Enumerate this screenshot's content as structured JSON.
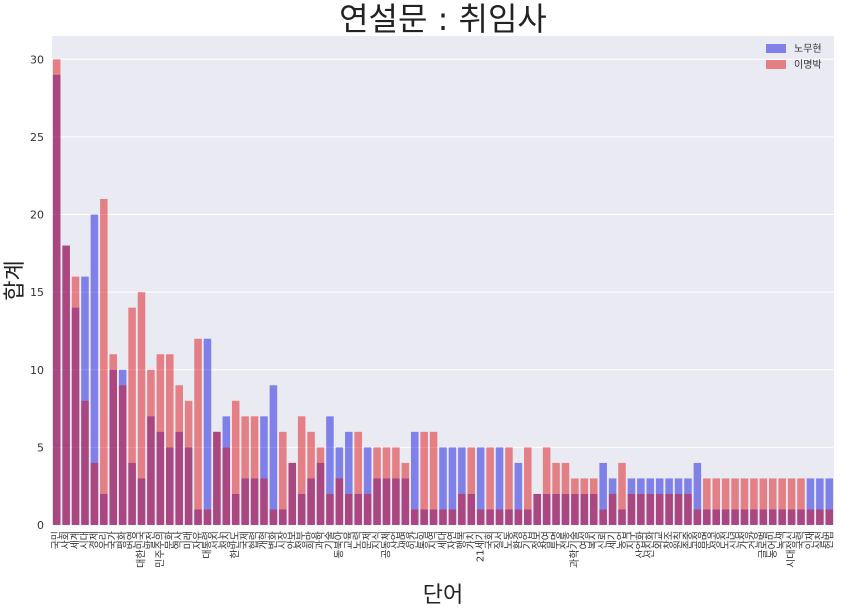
{
  "chart_data": {
    "type": "bar",
    "title": "연설문 : 취임사",
    "xlabel": "단어",
    "ylabel": "합계",
    "ylim": [
      0,
      31.5
    ],
    "yticks": [
      0,
      5,
      10,
      15,
      20,
      25,
      30
    ],
    "grid": true,
    "legend_position": "top-right",
    "categories": [
      "국민",
      "사회",
      "세계",
      "시대",
      "경제",
      "우리",
      "국가",
      "평화",
      "번영",
      "대한민국",
      "발전",
      "민주주의",
      "문화",
      "역사",
      "미래",
      "자유",
      "대통령",
      "선진",
      "정치",
      "한반도",
      "국제",
      "협력",
      "개혁",
      "변화",
      "시장",
      "안보",
      "정부",
      "희망",
      "과학",
      "기술",
      "동북아",
      "교육",
      "노력",
      "문제",
      "지식",
      "공동체",
      "산업",
      "생명",
      "인간",
      "통일",
      "지역",
      "세대",
      "자연",
      "행복",
      "가치",
      "21세기",
      "국회",
      "질서",
      "노동",
      "환경",
      "기업",
      "정보",
      "참여",
      "투명",
      "전통",
      "과학기술",
      "여성",
      "복지",
      "신뢰",
      "세기",
      "농업",
      "지구",
      "산업화",
      "선진화",
      "외교",
      "창조",
      "원칙",
      "존중",
      "공정",
      "문명",
      "성공",
      "도전",
      "신념",
      "가정",
      "건강",
      "글로벌",
      "농어민",
      "녹색",
      "시대정신",
      "국력",
      "인재",
      "실천",
      "헌법"
    ],
    "series": [
      {
        "name": "노무현",
        "color": "#0000dd",
        "alpha": 0.45,
        "values": [
          29,
          18,
          14,
          16,
          20,
          2,
          10,
          10,
          4,
          3,
          7,
          6,
          5,
          6,
          5,
          1,
          12,
          6,
          7,
          2,
          3,
          3,
          7,
          9,
          1,
          4,
          2,
          3,
          4,
          7,
          5,
          6,
          2,
          5,
          3,
          3,
          3,
          3,
          6,
          1,
          1,
          5,
          5,
          5,
          2,
          5,
          1,
          5,
          1,
          4,
          1,
          2,
          2,
          2,
          2,
          2,
          2,
          2,
          4,
          3,
          1,
          3,
          3,
          3,
          3,
          3,
          3,
          3,
          4,
          1,
          1,
          1,
          1,
          1,
          1,
          1,
          1,
          1,
          1,
          1,
          3,
          3,
          3
        ]
      },
      {
        "name": "이명박",
        "color": "#dd0000",
        "alpha": 0.45,
        "values": [
          30,
          18,
          16,
          8,
          4,
          21,
          11,
          9,
          14,
          15,
          10,
          11,
          11,
          9,
          8,
          12,
          1,
          6,
          5,
          8,
          7,
          7,
          3,
          1,
          6,
          4,
          7,
          6,
          5,
          2,
          3,
          2,
          6,
          2,
          5,
          5,
          5,
          4,
          1,
          6,
          6,
          1,
          1,
          2,
          5,
          1,
          5,
          1,
          5,
          1,
          5,
          2,
          5,
          4,
          4,
          3,
          3,
          3,
          1,
          2,
          4,
          2,
          2,
          2,
          2,
          2,
          2,
          2,
          1,
          3,
          3,
          3,
          3,
          3,
          3,
          3,
          3,
          3,
          3,
          3,
          1,
          1,
          1
        ]
      }
    ]
  }
}
